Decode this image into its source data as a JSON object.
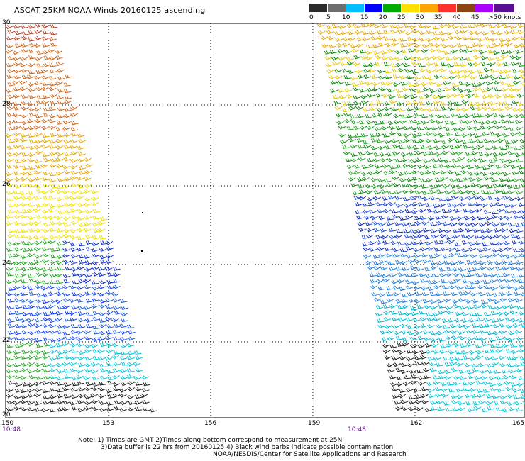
{
  "title": "ASCAT 25KM NOAA Winds 20160125 ascending",
  "colorbar": {
    "labels": [
      "0",
      "5",
      "10",
      "15",
      "20",
      "25",
      "30",
      "35",
      "40",
      "45",
      ">50 knots"
    ],
    "colors": [
      "#000000",
      "#6e6e6e",
      "#00bfff",
      "#0000ff",
      "#00aa00",
      "#ffe000",
      "#ffa500",
      "#ff3030",
      "#8b4513",
      "#aa00ff",
      "#5a1090"
    ]
  },
  "axes": {
    "lon_labels": [
      "150",
      "153",
      "156",
      "159",
      "162",
      "165"
    ],
    "lat_labels": [
      "30",
      "28",
      "26",
      "24",
      "22",
      "20"
    ]
  },
  "time_labels": [
    "10:48",
    "10:48"
  ],
  "notes": {
    "line1": "Note: 1) Times are GMT 2)Times along bottom correspond to measurement at 25N",
    "line2": "3)Data buffer is 22 hrs from 20160125 4) Black wind barbs indicate possible contamination",
    "line3": "NOAA/NESDIS/Center for Satellite Applications and Research"
  }
}
